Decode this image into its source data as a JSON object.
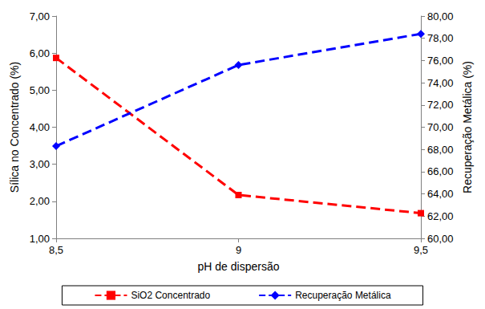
{
  "chart_data": {
    "type": "line",
    "x_label": "pH de dispersão",
    "y_label": "Sílica no Concentrado (%)",
    "y2_label": "Recuperação Metálica (%)",
    "x": [
      8.5,
      9,
      9.5
    ],
    "xlim": [
      8.5,
      9.5
    ],
    "xticks": [
      {
        "value": 8.5,
        "label": "8,5"
      },
      9,
      {
        "value": 9.5,
        "label": "9,5"
      }
    ],
    "ylim": [
      1,
      7
    ],
    "yticks": [
      {
        "value": 1,
        "label": "1,00"
      },
      {
        "value": 2,
        "label": "2,00"
      },
      {
        "value": 3,
        "label": "3,00"
      },
      {
        "value": 4,
        "label": "4,00"
      },
      {
        "value": 5,
        "label": "5,00"
      },
      {
        "value": 6,
        "label": "6,00"
      },
      {
        "value": 7,
        "label": "7,00"
      }
    ],
    "y2lim": [
      60,
      80
    ],
    "y2ticks": [
      {
        "value": 60,
        "label": "60,00"
      },
      {
        "value": 62,
        "label": "62,00"
      },
      {
        "value": 64,
        "label": "64,00"
      },
      {
        "value": 66,
        "label": "66,00"
      },
      {
        "value": 68,
        "label": "68,00"
      },
      {
        "value": 70,
        "label": "70,00"
      },
      {
        "value": 72,
        "label": "72,00"
      },
      {
        "value": 74,
        "label": "74,00"
      },
      {
        "value": 76,
        "label": "76,00"
      },
      {
        "value": 78,
        "label": "78,00"
      },
      {
        "value": 80,
        "label": "80,00"
      }
    ],
    "grid": false,
    "legend": "bottom",
    "series": [
      {
        "name": "SiO2 Concentrado",
        "color": "#ff0000",
        "marker": "square",
        "line_style": "dashed",
        "values": [
          5.87,
          2.17,
          1.68
        ]
      },
      {
        "name": "Recuperação Metálica",
        "color": "#0000ff",
        "marker": "diamond",
        "line_style": "dashed",
        "axis": "y2",
        "values": [
          68.3,
          75.6,
          78.4
        ]
      }
    ]
  }
}
